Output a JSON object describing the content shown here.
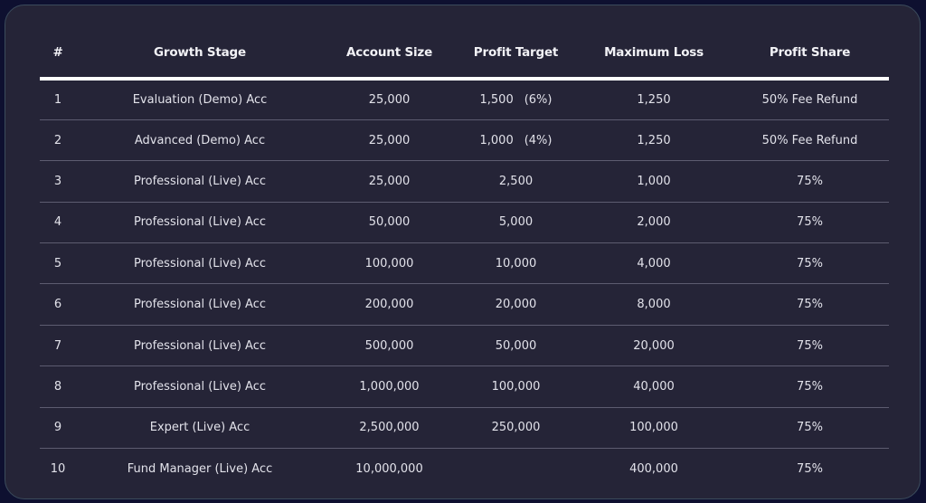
{
  "headers": [
    "#",
    "Growth Stage",
    "Account Size",
    "Profit Target",
    "Maximum Loss",
    "Profit Share"
  ],
  "rows": [
    {
      "num": "1",
      "stage": "Evaluation (Demo) Acc",
      "size": "25,000",
      "target": "1,500",
      "target_pct": "(6%)",
      "loss": "1,250",
      "share": "50% Fee Refund"
    },
    {
      "num": "2",
      "stage": "Advanced (Demo) Acc",
      "size": "25,000",
      "target": "1,000",
      "target_pct": "(4%)",
      "loss": "1,250",
      "share": "50% Fee Refund"
    },
    {
      "num": "3",
      "stage": "Professional (Live) Acc",
      "size": "25,000",
      "target": "2,500",
      "loss": "1,000",
      "share": "75%"
    },
    {
      "num": "4",
      "stage": "Professional (Live) Acc",
      "size": "50,000",
      "target": "5,000",
      "loss": "2,000",
      "share": "75%"
    },
    {
      "num": "5",
      "stage": "Professional (Live) Acc",
      "size": "100,000",
      "target": "10,000",
      "loss": "4,000",
      "share": "75%"
    },
    {
      "num": "6",
      "stage": "Professional (Live) Acc",
      "size": "200,000",
      "target": "20,000",
      "loss": "8,000",
      "share": "75%"
    },
    {
      "num": "7",
      "stage": "Professional (Live) Acc",
      "size": "500,000",
      "target": "50,000",
      "loss": "20,000",
      "share": "75%"
    },
    {
      "num": "8",
      "stage": "Professional (Live) Acc",
      "size": "1,000,000",
      "target": "100,000",
      "loss": "40,000",
      "share": "75%"
    },
    {
      "num": "9",
      "stage": "Expert (Live) Acc",
      "size": "2,500,000",
      "target": "250,000",
      "loss": "100,000",
      "share": "75%"
    },
    {
      "num": "10",
      "stage": "Fund Manager (Live) Acc",
      "size": "10,000,000",
      "target": "",
      "loss": "400,000",
      "share": "75%"
    }
  ]
}
